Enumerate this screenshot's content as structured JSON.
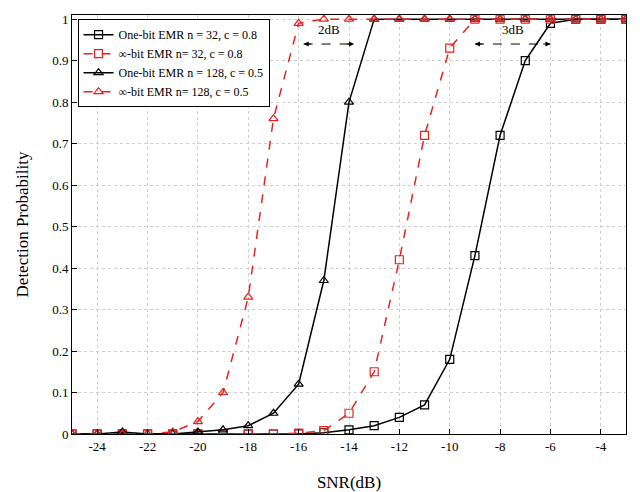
{
  "chart_data": {
    "type": "line",
    "x_label": "SNR(dB)",
    "y_label": "Detection Probability",
    "x": [
      -25,
      -24,
      -23,
      -22,
      -21,
      -20,
      -19,
      -18,
      -17,
      -16,
      -15,
      -14,
      -13,
      -12,
      -11,
      -10,
      -9,
      -8,
      -7,
      -6,
      -5,
      -4,
      -3
    ],
    "series": [
      {
        "name": "One-bit EMR n = 32, c = 0.8",
        "color": "#000000",
        "marker": "square",
        "line_style": "solid",
        "values": [
          0,
          0,
          0,
          0,
          0,
          0,
          0,
          0,
          0,
          0,
          0.003,
          0.01,
          0.02,
          0.04,
          0.07,
          0.18,
          0.43,
          0.72,
          0.9,
          0.99,
          1,
          1,
          1
        ]
      },
      {
        "name": "∞-bit EMR n= 32, c = 0.8",
        "color": "#e8231f",
        "marker": "square",
        "line_style": "dash",
        "values": [
          0,
          0,
          0,
          0,
          0,
          0,
          0,
          0,
          0,
          0.002,
          0.008,
          0.05,
          0.15,
          0.42,
          0.72,
          0.93,
          1,
          1,
          1,
          1,
          1,
          1,
          1
        ]
      },
      {
        "name": "One-bit EMR n = 128, c = 0.5",
        "color": "#000000",
        "marker": "triangle-up",
        "line_style": "solid",
        "values": [
          0,
          0,
          0.005,
          0,
          0,
          0.005,
          0.01,
          0.02,
          0.05,
          0.12,
          0.37,
          0.8,
          1,
          1,
          1,
          1,
          1,
          1,
          1,
          1,
          1,
          1,
          1
        ]
      },
      {
        "name": "∞-bit EMR n= 128, c = 0.5",
        "color": "#e8231f",
        "marker": "triangle-up",
        "line_style": "dash",
        "values": [
          0,
          0,
          0,
          0,
          0.005,
          0.03,
          0.1,
          0.33,
          0.76,
          0.99,
          1,
          1,
          1,
          1,
          1,
          1,
          1,
          1,
          1,
          1,
          1,
          1,
          1
        ]
      }
    ],
    "xlim": [
      -25,
      -3
    ],
    "xticks": [
      -24,
      -22,
      -20,
      -18,
      -16,
      -14,
      -12,
      -10,
      -8,
      -6,
      -4
    ],
    "ylim": [
      0,
      1.01
    ],
    "yticks": [
      0,
      0.1,
      0.2,
      0.3,
      0.4,
      0.5,
      0.6,
      0.7,
      0.8,
      0.9,
      1
    ],
    "grid": true,
    "legend": "upper left",
    "annotations": [
      {
        "text": "2dB",
        "x": -14.8,
        "y": 0.975,
        "x0": -15.8,
        "x1": -13.8,
        "y_arrow": 0.94
      },
      {
        "text": "3dB",
        "x": -7.5,
        "y": 0.975,
        "x0": -9,
        "x1": -6,
        "y_arrow": 0.94
      }
    ]
  }
}
